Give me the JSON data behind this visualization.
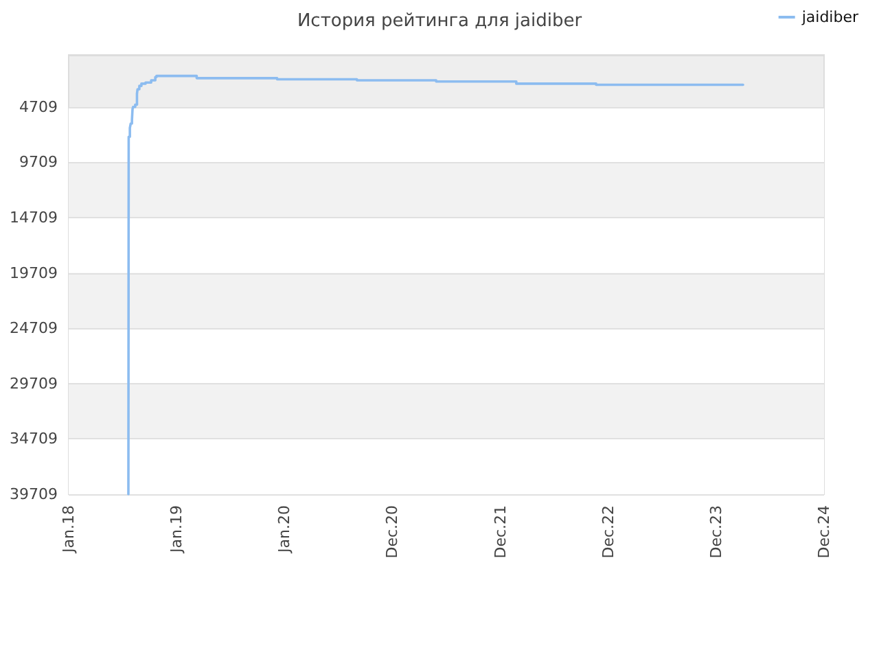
{
  "chart_data": {
    "type": "step",
    "title": "История рейтинга для jaidiber",
    "x": [
      "2018-07-22",
      "2018-07-23",
      "2018-07-27",
      "2018-07-30",
      "2018-08-03",
      "2018-08-05",
      "2018-08-07",
      "2018-08-14",
      "2018-08-20",
      "2018-08-22",
      "2018-08-28",
      "2018-09-04",
      "2018-09-18",
      "2018-10-07",
      "2018-10-21",
      "2018-10-25",
      "2019-03-10",
      "2019-12-07",
      "2020-09-02",
      "2021-05-28",
      "2022-02-23",
      "2022-11-20",
      "2024-03-31"
    ],
    "series": [
      {
        "name": "jaidiber",
        "color": "#8cbcf0",
        "values": [
          39709,
          7400,
          6600,
          6200,
          5900,
          4900,
          4700,
          4500,
          3500,
          3100,
          2800,
          2600,
          2500,
          2300,
          2000,
          1900,
          2100,
          2200,
          2300,
          2400,
          2600,
          2700,
          2700
        ]
      }
    ],
    "xlim": [
      "2018-01-01",
      "2024-12-30"
    ],
    "xticks": [
      {
        "value": "2018-01-01",
        "label": "Jan.18"
      },
      {
        "value": "2019-01-01",
        "label": "Jan.19"
      },
      {
        "value": "2020-01-01",
        "label": "Jan.20"
      },
      {
        "value": "2020-12-31",
        "label": "Dec.20"
      },
      {
        "value": "2021-12-31",
        "label": "Dec.21"
      },
      {
        "value": "2022-12-31",
        "label": "Dec.22"
      },
      {
        "value": "2023-12-31",
        "label": "Dec.23"
      },
      {
        "value": "2024-12-30",
        "label": "Dec.24"
      }
    ],
    "ylim": [
      39709,
      0
    ],
    "yticks": [
      4709,
      9709,
      14709,
      19709,
      24709,
      29709,
      34709,
      39709
    ],
    "grid": "y",
    "legend": "top right",
    "marker": "none",
    "line_style": "solid"
  }
}
